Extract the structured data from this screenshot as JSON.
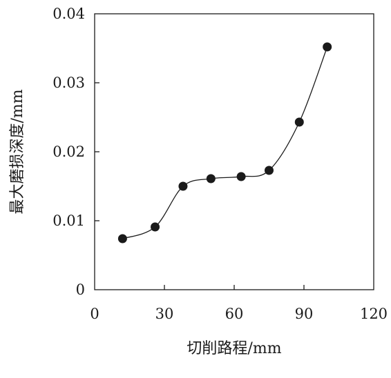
{
  "chart_data": {
    "type": "line",
    "xlabel": "切削路程/mm",
    "ylabel": "最大磨损深度/mm",
    "xlim": [
      0,
      120
    ],
    "ylim": [
      0,
      0.04
    ],
    "x_ticks": [
      {
        "value": 0,
        "label": "0"
      },
      {
        "value": 30,
        "label": "30"
      },
      {
        "value": 60,
        "label": "60"
      },
      {
        "value": 90,
        "label": "90"
      },
      {
        "value": 120,
        "label": "120"
      }
    ],
    "y_ticks": [
      {
        "value": 0,
        "label": "0"
      },
      {
        "value": 0.01,
        "label": "0.01"
      },
      {
        "value": 0.02,
        "label": "0.02"
      },
      {
        "value": 0.03,
        "label": "0.03"
      },
      {
        "value": 0.04,
        "label": "0.04"
      }
    ],
    "grid": false,
    "series": [
      {
        "smooth": true,
        "color": "#1a1a1a",
        "points": [
          {
            "x": 12,
            "y": 0.0074
          },
          {
            "x": 26,
            "y": 0.0091
          },
          {
            "x": 38,
            "y": 0.015
          },
          {
            "x": 50,
            "y": 0.0161
          },
          {
            "x": 63,
            "y": 0.0164
          },
          {
            "x": 75,
            "y": 0.0173
          },
          {
            "x": 88,
            "y": 0.0243
          },
          {
            "x": 100,
            "y": 0.0352
          }
        ]
      }
    ]
  }
}
